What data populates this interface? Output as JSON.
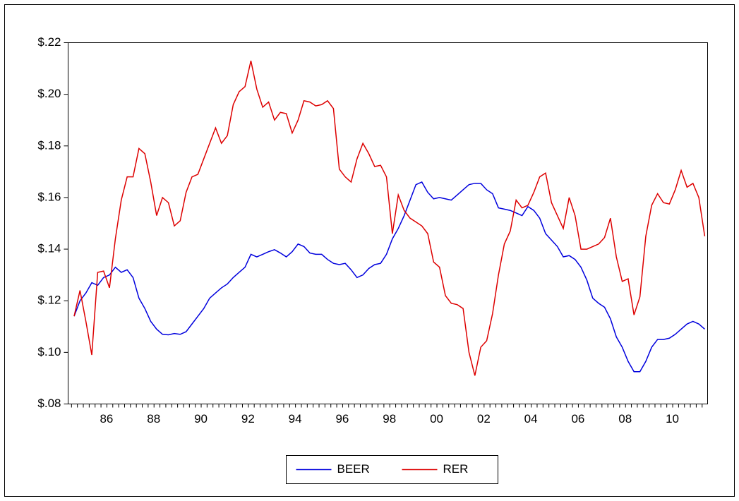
{
  "chart_data": {
    "type": "line",
    "categories": [
      null,
      null,
      null,
      null,
      null,
      "86",
      null,
      null,
      null,
      null,
      null,
      null,
      null,
      "88",
      null,
      null,
      null,
      null,
      null,
      null,
      null,
      "90",
      null,
      null,
      null,
      null,
      null,
      null,
      null,
      "92",
      null,
      null,
      null,
      null,
      null,
      null,
      null,
      "94",
      null,
      null,
      null,
      null,
      null,
      null,
      null,
      "96",
      null,
      null,
      null,
      null,
      null,
      null,
      null,
      "98",
      null,
      null,
      null,
      null,
      null,
      null,
      null,
      "00",
      null,
      null,
      null,
      null,
      null,
      null,
      null,
      "02",
      null,
      null,
      null,
      null,
      null,
      null,
      null,
      "04",
      null,
      null,
      null,
      null,
      null,
      null,
      null,
      "06",
      null,
      null,
      null,
      null,
      null,
      null,
      null,
      "08",
      null,
      null,
      null,
      null,
      null,
      null,
      null,
      "10",
      null,
      null,
      null,
      null,
      null,
      null
    ],
    "series": [
      {
        "name": "BEER",
        "color": "#0000dd",
        "values": [
          0.114,
          0.12,
          0.123,
          0.127,
          0.126,
          0.129,
          0.13,
          0.133,
          0.131,
          0.132,
          0.129,
          0.121,
          0.117,
          0.112,
          0.109,
          0.107,
          0.1068,
          0.1073,
          0.107,
          0.108,
          0.111,
          0.114,
          0.117,
          0.121,
          0.123,
          0.125,
          0.1265,
          0.129,
          0.131,
          0.133,
          0.138,
          0.137,
          0.138,
          0.139,
          0.1398,
          0.1385,
          0.137,
          0.139,
          0.142,
          0.141,
          0.1385,
          0.138,
          0.138,
          0.136,
          0.1345,
          0.134,
          0.1345,
          0.132,
          0.129,
          0.13,
          0.1325,
          0.134,
          0.1345,
          0.138,
          0.144,
          0.148,
          0.153,
          0.159,
          0.165,
          0.166,
          0.162,
          0.1595,
          0.16,
          0.1595,
          0.159,
          0.161,
          0.163,
          0.165,
          0.1655,
          0.1655,
          0.163,
          0.1615,
          0.156,
          0.1555,
          0.155,
          0.154,
          0.153,
          0.1565,
          0.155,
          0.152,
          0.146,
          0.1435,
          0.141,
          0.137,
          0.1375,
          0.136,
          0.133,
          0.128,
          0.121,
          0.119,
          0.1175,
          0.113,
          0.106,
          0.102,
          0.0965,
          0.0925,
          0.0925,
          0.0965,
          0.102,
          0.105,
          0.105,
          0.1055,
          0.107,
          0.109,
          0.111,
          0.112,
          0.111,
          0.109
        ]
      },
      {
        "name": "RER",
        "color": "#dd0000",
        "values": [
          0.114,
          0.124,
          0.112,
          0.099,
          0.131,
          0.1315,
          0.125,
          0.144,
          0.159,
          0.168,
          0.168,
          0.179,
          0.177,
          0.166,
          0.153,
          0.16,
          0.158,
          0.149,
          0.151,
          0.162,
          0.168,
          0.169,
          0.175,
          0.181,
          0.187,
          0.181,
          0.184,
          0.196,
          0.201,
          0.203,
          0.213,
          0.202,
          0.195,
          0.197,
          0.19,
          0.193,
          0.1925,
          0.185,
          0.19,
          0.1975,
          0.197,
          0.1955,
          0.196,
          0.1975,
          0.1945,
          0.171,
          0.168,
          0.166,
          0.175,
          0.181,
          0.177,
          0.172,
          0.1725,
          0.168,
          0.146,
          0.161,
          0.155,
          0.152,
          0.1505,
          0.149,
          0.146,
          0.135,
          0.133,
          0.122,
          0.119,
          0.1185,
          0.117,
          0.1,
          0.091,
          0.102,
          0.1045,
          0.115,
          0.13,
          0.142,
          0.147,
          0.159,
          0.156,
          0.157,
          0.162,
          0.168,
          0.1695,
          0.158,
          0.153,
          0.148,
          0.16,
          0.153,
          0.14,
          0.14,
          0.141,
          0.142,
          0.1445,
          0.152,
          0.137,
          0.1275,
          0.1285,
          0.1145,
          0.1215,
          0.145,
          0.157,
          0.1615,
          0.158,
          0.1575,
          0.163,
          0.1705,
          0.164,
          0.1655,
          0.16,
          0.145
        ]
      }
    ],
    "ylim": [
      0.08,
      0.22
    ],
    "yticks": [
      {
        "value": 0.08,
        "label": "$.08"
      },
      {
        "value": 0.1,
        "label": "$.10"
      },
      {
        "value": 0.12,
        "label": "$.12"
      },
      {
        "value": 0.14,
        "label": "$.14"
      },
      {
        "value": 0.16,
        "label": "$.16"
      },
      {
        "value": 0.18,
        "label": "$.18"
      },
      {
        "value": 0.2,
        "label": "$.20"
      },
      {
        "value": 0.22,
        "label": "$.22"
      }
    ],
    "legend": "bottom"
  }
}
